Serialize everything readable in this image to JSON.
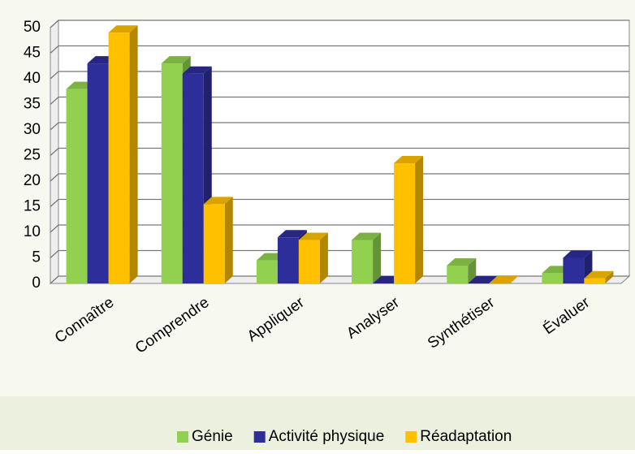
{
  "chart_data": {
    "type": "bar3d",
    "categories": [
      "Connaître",
      "Comprendre",
      "Appliquer",
      "Analyser",
      "Synthétiser",
      "Évaluer"
    ],
    "series": [
      {
        "name": "Génie",
        "color": "#92d050",
        "values": [
          38,
          43,
          4.5,
          8.5,
          3.5,
          2
        ]
      },
      {
        "name": "Activité physique",
        "color": "#2e2e9a",
        "values": [
          43,
          41,
          9,
          0,
          0,
          5
        ]
      },
      {
        "name": "Réadaptation",
        "color": "#ffc000",
        "values": [
          49,
          15.5,
          8.5,
          23.5,
          0,
          1
        ]
      }
    ],
    "ylim": [
      0,
      50
    ],
    "yticks": [
      0,
      5,
      10,
      15,
      20,
      25,
      30,
      35,
      40,
      45,
      50
    ],
    "grid": true,
    "legend": "bottom"
  }
}
